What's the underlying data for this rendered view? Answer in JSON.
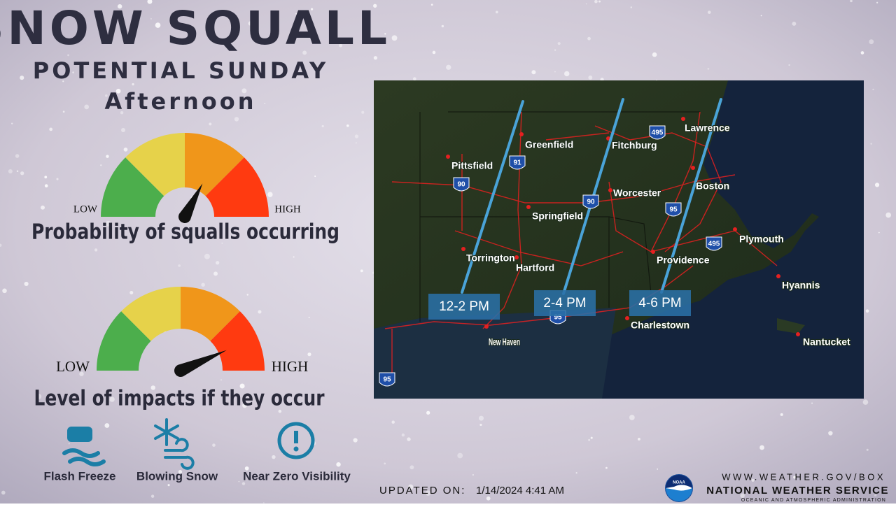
{
  "header": {
    "title": "SNOW SQUALL",
    "subtitle": "POTENTIAL SUNDAY",
    "time": "Afternoon"
  },
  "gauges": [
    {
      "low": "LOW",
      "high": "HIGH",
      "caption": "Probability of squalls occurring"
    },
    {
      "low": "LOW",
      "high": "HIGH",
      "caption": "Level of impacts if they occur"
    }
  ],
  "icons": [
    "Flash Freeze",
    "Blowing Snow",
    "Near Zero Visibility"
  ],
  "map": {
    "cities": [
      "Lawrence",
      "Greenfield",
      "Fitchburg",
      "Pittsfield",
      "Boston",
      "Worcester",
      "Springfield",
      "Plymouth",
      "Torrington",
      "Providence",
      "Hartford",
      "Hyannis",
      "Charlestown",
      "New Haven",
      "Nantucket"
    ],
    "highways": [
      "495",
      "91",
      "90",
      "90",
      "95",
      "495",
      "95",
      "95"
    ],
    "windows": [
      "12-2 PM",
      "2-4 PM",
      "4-6 PM"
    ]
  },
  "footer": {
    "updated_label": "UPDATED ON:",
    "updated": "1/14/2024 4:41 AM",
    "url": "WWW.WEATHER.GOV/BOX",
    "agency": "NATIONAL WEATHER SERVICE",
    "parent": "OCEANIC AND ATMOSPHERIC ADMINISTRATION",
    "logo": "NOAA"
  }
}
